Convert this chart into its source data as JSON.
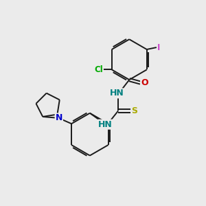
{
  "background_color": "#ebebeb",
  "bond_color": "#1a1a1a",
  "bond_width": 1.4,
  "atom_colors": {
    "N": "#008080",
    "N2": "#0000cc",
    "O": "#cc0000",
    "S": "#aaaa00",
    "Cl": "#00aa00",
    "I": "#cc44cc"
  },
  "figsize": [
    3.0,
    3.0
  ],
  "dpi": 100
}
